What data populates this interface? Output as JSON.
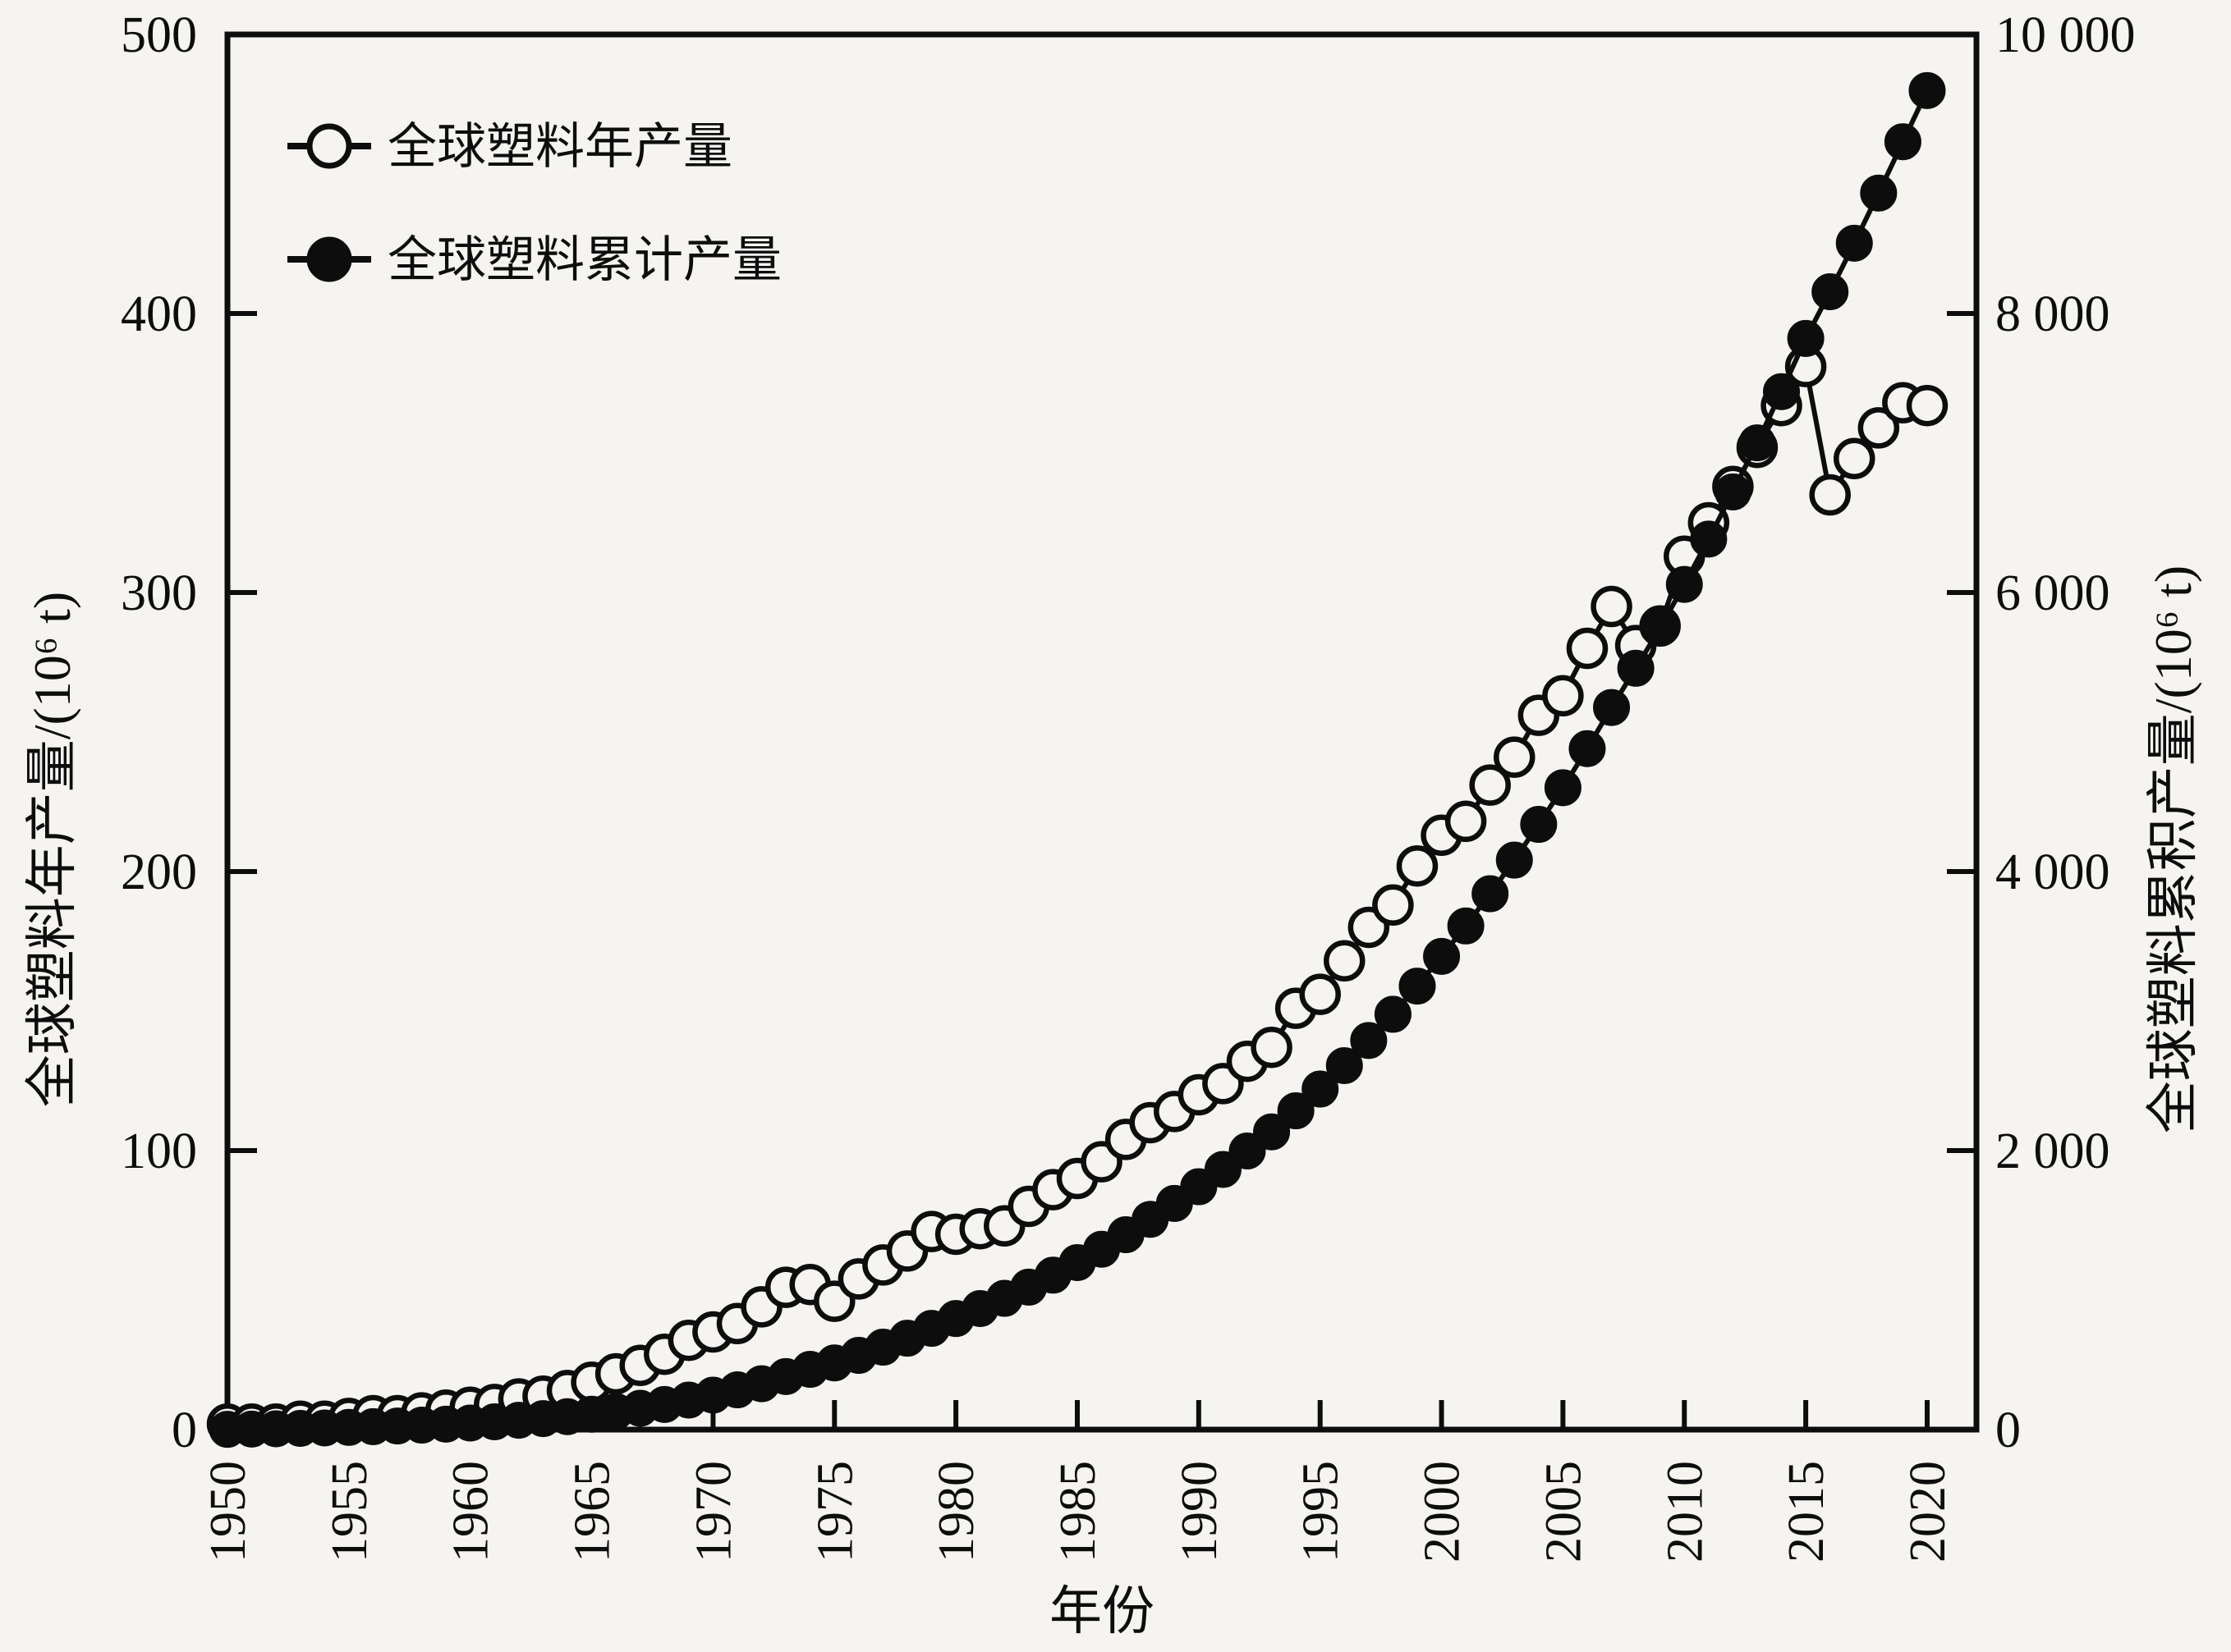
{
  "figure": {
    "background": "#f5f4f1",
    "ink": "#0d0d0d"
  },
  "legend": {
    "items": [
      {
        "label": "全球塑料年产量",
        "marker": "open-circle"
      },
      {
        "label": "全球塑料累计产量",
        "marker": "filled-circle"
      }
    ]
  },
  "axes": {
    "x": {
      "title": "年份",
      "min": 1950,
      "max": 2020,
      "tick_step": 5,
      "tick_labels": [
        "1950",
        "1955",
        "1960",
        "1965",
        "1970",
        "1975",
        "1980",
        "1985",
        "1990",
        "1995",
        "2000",
        "2005",
        "2010",
        "2015",
        "2020"
      ]
    },
    "y_left": {
      "title": "全球塑料年产量/(10⁶ t)",
      "min": 0,
      "max": 500,
      "tick_step": 100,
      "tick_labels": [
        "0",
        "100",
        "200",
        "300",
        "400",
        "500"
      ]
    },
    "y_right": {
      "title": "全球塑料累积产量/(10⁶ t)",
      "min": 0,
      "max": 10000,
      "tick_step": 2000,
      "tick_labels": [
        "0",
        "2 000",
        "4 000",
        "6 000",
        "8 000",
        "10 000"
      ]
    }
  },
  "chart_data": {
    "type": "line",
    "title": "",
    "xlabel": "年份",
    "ylabel_left": "全球塑料年产量/(10⁶ t)",
    "ylabel_right": "全球塑料累积产量/(10⁶ t)",
    "x_range": [
      1950,
      2020
    ],
    "y_left_range": [
      0,
      500
    ],
    "y_right_range": [
      0,
      10000
    ],
    "grid": false,
    "legend_position": "top-left-inside",
    "x": [
      1950,
      1951,
      1952,
      1953,
      1954,
      1955,
      1956,
      1957,
      1958,
      1959,
      1960,
      1961,
      1962,
      1963,
      1964,
      1965,
      1966,
      1967,
      1968,
      1969,
      1970,
      1971,
      1972,
      1973,
      1974,
      1975,
      1976,
      1977,
      1978,
      1979,
      1980,
      1981,
      1982,
      1983,
      1984,
      1985,
      1986,
      1987,
      1988,
      1989,
      1990,
      1991,
      1992,
      1993,
      1994,
      1995,
      1996,
      1997,
      1998,
      1999,
      2000,
      2001,
      2002,
      2003,
      2004,
      2005,
      2006,
      2007,
      2008,
      2009,
      2010,
      2011,
      2012,
      2013,
      2014,
      2015,
      2016,
      2017,
      2018,
      2019,
      2020
    ],
    "series": [
      {
        "name": "全球塑料年产量",
        "axis": "left",
        "marker": "open-circle",
        "unit": "10⁶ t",
        "values": [
          2,
          2,
          2,
          3,
          3,
          4,
          5,
          5,
          6,
          7,
          8,
          9,
          11,
          12,
          14,
          17,
          20,
          23,
          27,
          32,
          35,
          38,
          44,
          51,
          52,
          46,
          54,
          59,
          64,
          71,
          70,
          72,
          73,
          80,
          86,
          90,
          96,
          104,
          110,
          114,
          120,
          124,
          132,
          137,
          151,
          156,
          168,
          180,
          188,
          202,
          213,
          218,
          231,
          241,
          256,
          263,
          280,
          295,
          281,
          288,
          313,
          325,
          338,
          352,
          367,
          381,
          335,
          348,
          359,
          368,
          367
        ]
      },
      {
        "name": "全球塑料累计产量",
        "axis": "right",
        "marker": "filled-circle",
        "unit": "10⁶ t",
        "values": [
          2,
          4,
          6,
          9,
          12,
          16,
          21,
          26,
          32,
          39,
          47,
          56,
          67,
          79,
          93,
          110,
          130,
          153,
          180,
          212,
          247,
          285,
          329,
          380,
          432,
          478,
          532,
          591,
          655,
          726,
          796,
          868,
          941,
          1021,
          1107,
          1197,
          1293,
          1397,
          1507,
          1621,
          1741,
          1865,
          1997,
          2134,
          2285,
          2441,
          2609,
          2789,
          2977,
          3179,
          3392,
          3610,
          3841,
          4082,
          4338,
          4601,
          4881,
          5176,
          5457,
          5745,
          6058,
          6383,
          6721,
          7073,
          7440,
          7821,
          8156,
          8504,
          8863,
          9231,
          9598
        ]
      }
    ]
  }
}
